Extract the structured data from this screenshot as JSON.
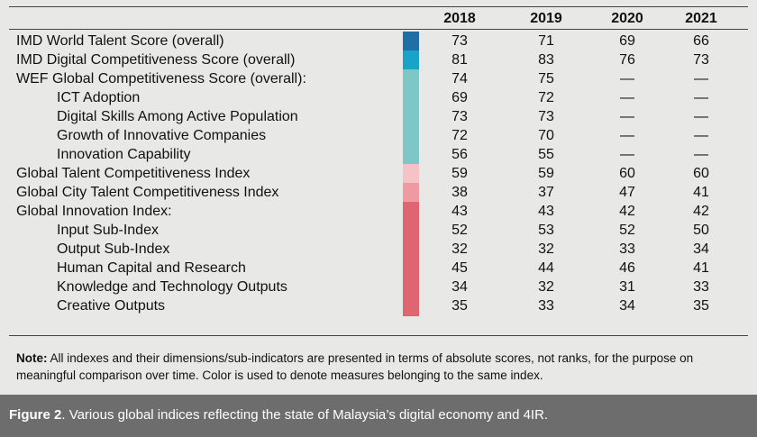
{
  "table": {
    "columns": [
      "2018",
      "2019",
      "2020",
      "2021"
    ],
    "rows": [
      {
        "label": "IMD World Talent Score (overall)",
        "color": "#1f6ea6",
        "indent": false,
        "values": [
          73,
          71,
          69,
          66
        ]
      },
      {
        "label": "IMD Digital Competitiveness Score (overall)",
        "color": "#1ba2c8",
        "indent": false,
        "values": [
          81,
          83,
          76,
          73
        ]
      },
      {
        "label": "WEF Global Competitiveness Score (overall):",
        "color": "#7fc7c6",
        "indent": false,
        "values": [
          74,
          75,
          "—",
          "—"
        ]
      },
      {
        "label": "ICT Adoption",
        "color": "#7fc7c6",
        "indent": true,
        "values": [
          69,
          72,
          "—",
          "—"
        ]
      },
      {
        "label": "Digital Skills Among Active Population",
        "color": "#7fc7c6",
        "indent": true,
        "values": [
          73,
          73,
          "—",
          "—"
        ]
      },
      {
        "label": "Growth of Innovative Companies",
        "color": "#7fc7c6",
        "indent": true,
        "values": [
          72,
          70,
          "—",
          "—"
        ]
      },
      {
        "label": "Innovation Capability",
        "color": "#7fc7c6",
        "indent": true,
        "values": [
          56,
          55,
          "—",
          "—"
        ]
      },
      {
        "label": "Global Talent Competitiveness Index",
        "color": "#f5c3c6",
        "indent": false,
        "values": [
          59,
          59,
          60,
          60
        ]
      },
      {
        "label": "Global City Talent Competitiveness Index",
        "color": "#ee9aa1",
        "indent": false,
        "values": [
          38,
          37,
          47,
          41
        ]
      },
      {
        "label": "Global Innovation Index:",
        "color": "#df6670",
        "indent": false,
        "values": [
          43,
          43,
          42,
          42
        ]
      },
      {
        "label": "Input Sub-Index",
        "color": "#df6670",
        "indent": true,
        "values": [
          52,
          53,
          52,
          50
        ]
      },
      {
        "label": "Output Sub-Index",
        "color": "#df6670",
        "indent": true,
        "values": [
          32,
          32,
          33,
          34
        ]
      },
      {
        "label": "Human Capital and Research",
        "color": "#df6670",
        "indent": true,
        "values": [
          45,
          44,
          46,
          41
        ]
      },
      {
        "label": "Knowledge and Technology Outputs",
        "color": "#df6670",
        "indent": true,
        "values": [
          34,
          32,
          31,
          33
        ]
      },
      {
        "label": "Creative Outputs",
        "color": "#df6670",
        "indent": true,
        "values": [
          35,
          33,
          34,
          35
        ]
      }
    ]
  },
  "note": {
    "label": "Note:",
    "text": " All indexes and their dimensions/sub-indicators are presented in terms of absolute scores, not ranks, for the purpose on meaningful comparison over time. Color is used to denote measures belonging to the same index."
  },
  "caption": {
    "label": "Figure 2",
    "text": ". Various global indices reflecting the state of Malaysia’s digital economy and 4IR."
  }
}
